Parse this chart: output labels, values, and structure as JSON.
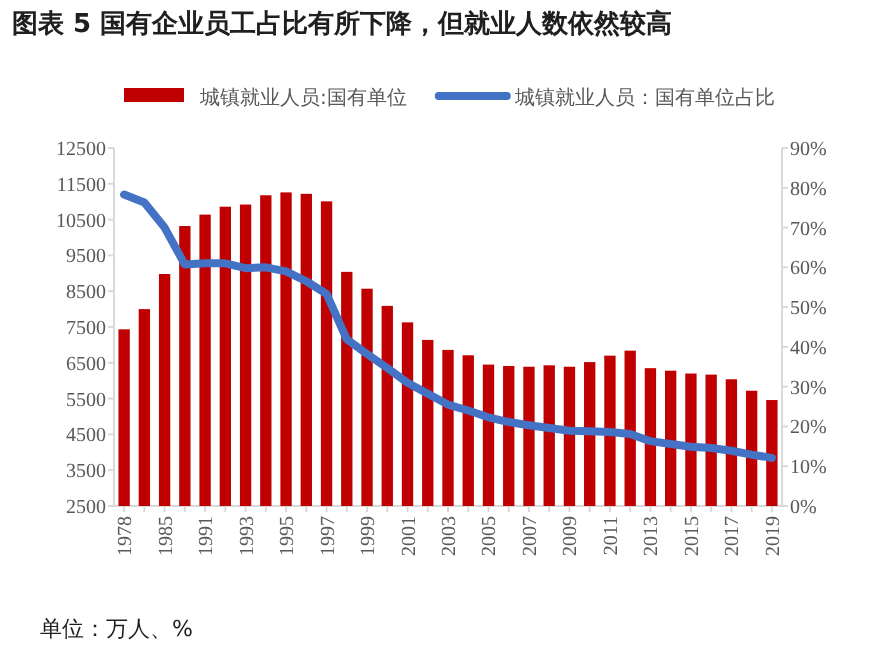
{
  "chart_data": {
    "type": "bar",
    "title": "图表 5 国有企业员工占比有所下降，但就业人数依然较高",
    "annotations": [
      "单位：万人、%"
    ],
    "categories": [
      "1978",
      null,
      "1985",
      null,
      "1991",
      null,
      "1993",
      null,
      "1995",
      null,
      "1997",
      null,
      "1999",
      null,
      "2001",
      null,
      "2003",
      null,
      "2005",
      null,
      "2007",
      null,
      "2009",
      null,
      "2011",
      null,
      "2013",
      null,
      "2015",
      null,
      "2017",
      null,
      "2019"
    ],
    "series": [
      {
        "name": "城镇就业人员:国有单位",
        "color": "#c00000",
        "values": [
          7435,
          8000,
          8980,
          10320,
          10640,
          10860,
          10920,
          11180,
          11260,
          11220,
          11010,
          9040,
          8570,
          8090,
          7630,
          7140,
          6860,
          6710,
          6450,
          6410,
          6390,
          6430,
          6390,
          6520,
          6700,
          6840,
          6350,
          6280,
          6200,
          6170,
          6040,
          5720,
          5460
        ]
      },
      {
        "name": "城镇就业人员：国有单位占比",
        "type": "line",
        "axis": "y2",
        "color": "#4472c4",
        "values": [
          78.3,
          76.3,
          70,
          60.7,
          61,
          61,
          59.8,
          60,
          59,
          56.5,
          53.3,
          41.9,
          38.2,
          34.7,
          31,
          28.2,
          25.5,
          24,
          22.3,
          21.1,
          20.3,
          19.6,
          18.9,
          18.8,
          18.6,
          18.1,
          16.3,
          15.6,
          14.9,
          14.6,
          13.9,
          12.9,
          12.1
        ]
      }
    ],
    "ylim": [
      2500,
      12500
    ],
    "yticks": [
      2500,
      3500,
      4500,
      5500,
      6500,
      7500,
      8500,
      9500,
      10500,
      11500,
      12500
    ],
    "y2lim": [
      0,
      90
    ],
    "y2ticks": [
      {
        "value": 0,
        "label": "0%"
      },
      {
        "value": 10,
        "label": "10%"
      },
      {
        "value": 20,
        "label": "20%"
      },
      {
        "value": 30,
        "label": "30%"
      },
      {
        "value": 40,
        "label": "40%"
      },
      {
        "value": 50,
        "label": "50%"
      },
      {
        "value": 60,
        "label": "60%"
      },
      {
        "value": 70,
        "label": "70%"
      },
      {
        "value": 80,
        "label": "80%"
      },
      {
        "value": 90,
        "label": "90%"
      }
    ],
    "legend": "top"
  }
}
